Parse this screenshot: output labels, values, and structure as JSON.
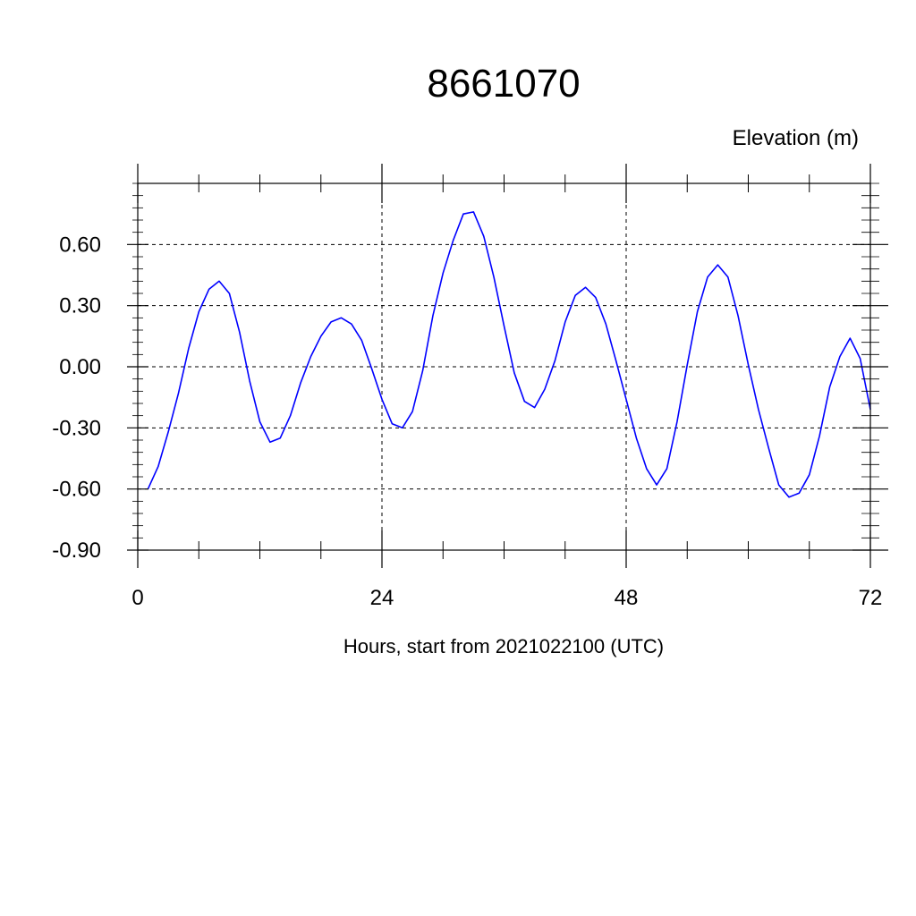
{
  "chart_data": {
    "type": "line",
    "title": "8661070",
    "ylabel": "Elevation (m)",
    "xlabel": "Hours, start from 2021022100 (UTC)",
    "xlim": [
      0,
      72
    ],
    "ylim": [
      -0.9,
      0.9
    ],
    "x_ticks": [
      0,
      24,
      48,
      72
    ],
    "x_tick_labels": [
      "0",
      "24",
      "48",
      "72"
    ],
    "y_ticks": [
      -0.9,
      -0.6,
      -0.3,
      0.0,
      0.3,
      0.6
    ],
    "y_tick_labels": [
      "-0.90",
      "-0.60",
      "-0.30",
      "0.00",
      "0.30",
      "0.60"
    ],
    "grid": true,
    "grid_style": "dashed",
    "series": [
      {
        "color": "#0000ff",
        "x": [
          1,
          2,
          3,
          4,
          5,
          6,
          7,
          8,
          9,
          10,
          11,
          12,
          13,
          14,
          15,
          16,
          17,
          18,
          19,
          20,
          21,
          22,
          23,
          24,
          25,
          26,
          27,
          28,
          29,
          30,
          31,
          32,
          33,
          34,
          35,
          36,
          37,
          38,
          39,
          40,
          41,
          42,
          43,
          44,
          45,
          46,
          47,
          48,
          49,
          50,
          51,
          52,
          53,
          54,
          55,
          56,
          57,
          58,
          59,
          60,
          61,
          62,
          63,
          64,
          65,
          66,
          67,
          68,
          69,
          70,
          71,
          72
        ],
        "y": [
          -0.6,
          -0.49,
          -0.32,
          -0.13,
          0.09,
          0.27,
          0.38,
          0.42,
          0.36,
          0.17,
          -0.07,
          -0.27,
          -0.37,
          -0.35,
          -0.24,
          -0.08,
          0.05,
          0.15,
          0.22,
          0.24,
          0.21,
          0.13,
          -0.01,
          -0.16,
          -0.28,
          -0.3,
          -0.22,
          -0.02,
          0.25,
          0.46,
          0.62,
          0.75,
          0.76,
          0.64,
          0.44,
          0.2,
          -0.03,
          -0.17,
          -0.2,
          -0.11,
          0.03,
          0.22,
          0.35,
          0.39,
          0.34,
          0.21,
          0.03,
          -0.16,
          -0.35,
          -0.5,
          -0.58,
          -0.5,
          -0.27,
          0.01,
          0.27,
          0.44,
          0.5,
          0.44,
          0.25,
          0.01,
          -0.21,
          -0.4,
          -0.58,
          -0.64,
          -0.62,
          -0.53,
          -0.34,
          -0.1,
          0.05,
          0.14,
          0.04,
          -0.21
        ]
      }
    ]
  }
}
